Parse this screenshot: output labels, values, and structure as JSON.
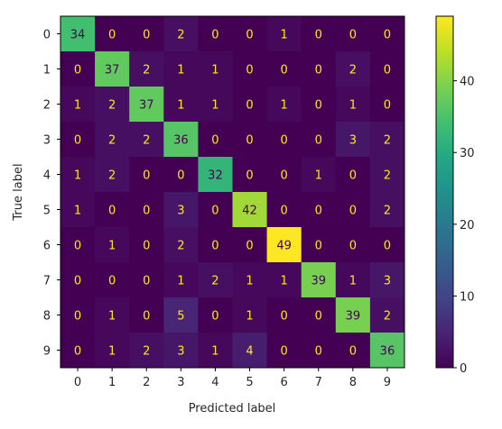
{
  "chart_data": {
    "type": "heatmap",
    "title": "",
    "xlabel": "Predicted label",
    "ylabel": "True label",
    "x_categories": [
      "0",
      "1",
      "2",
      "3",
      "4",
      "5",
      "6",
      "7",
      "8",
      "9"
    ],
    "y_categories": [
      "0",
      "1",
      "2",
      "3",
      "4",
      "5",
      "6",
      "7",
      "8",
      "9"
    ],
    "matrix": [
      [
        34,
        0,
        0,
        2,
        0,
        0,
        1,
        0,
        0,
        0
      ],
      [
        0,
        37,
        2,
        1,
        1,
        0,
        0,
        0,
        2,
        0
      ],
      [
        1,
        2,
        37,
        1,
        1,
        0,
        1,
        0,
        1,
        0
      ],
      [
        0,
        2,
        2,
        36,
        0,
        0,
        0,
        0,
        3,
        2
      ],
      [
        1,
        2,
        0,
        0,
        32,
        0,
        0,
        1,
        0,
        2
      ],
      [
        1,
        0,
        0,
        3,
        0,
        42,
        0,
        0,
        0,
        2
      ],
      [
        0,
        1,
        0,
        2,
        0,
        0,
        49,
        0,
        0,
        0
      ],
      [
        0,
        0,
        0,
        1,
        2,
        1,
        1,
        39,
        1,
        3
      ],
      [
        0,
        1,
        0,
        5,
        0,
        1,
        0,
        0,
        39,
        2
      ],
      [
        0,
        1,
        2,
        3,
        1,
        4,
        0,
        0,
        0,
        36
      ]
    ],
    "colormap": "viridis",
    "value_range": [
      0,
      49
    ],
    "colorbar": {
      "ticks": [
        0,
        10,
        20,
        30,
        40
      ],
      "tick_labels": [
        "0",
        "10",
        "20",
        "30",
        "40"
      ]
    },
    "grid": false,
    "legend": "none",
    "colors": {
      "low_text": "#fde725",
      "high_text": "#440154"
    }
  }
}
